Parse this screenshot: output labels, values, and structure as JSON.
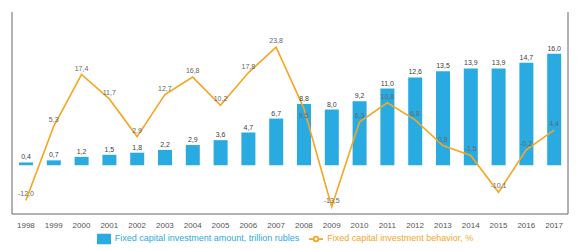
{
  "chart_data": {
    "type": "bar",
    "categories": [
      "1998",
      "1999",
      "2000",
      "2001",
      "2002",
      "2003",
      "2004",
      "2005",
      "2006",
      "2007",
      "2008",
      "2009",
      "2010",
      "2011",
      "2012",
      "2013",
      "2014",
      "2015",
      "2016",
      "2017"
    ],
    "series": [
      {
        "name": "Fixed capital investment amount, trillion rubles",
        "type": "bar",
        "color": "#29abe2",
        "values": [
          0.4,
          0.7,
          1.2,
          1.5,
          1.8,
          2.2,
          2.9,
          3.6,
          4.7,
          6.7,
          8.8,
          8.0,
          9.2,
          11.0,
          12.6,
          13.5,
          13.9,
          13.9,
          14.7,
          16.0
        ],
        "value_labels": [
          "0,4",
          "0,7",
          "1,2",
          "1,5",
          "1,8",
          "2,2",
          "2,9",
          "3,6",
          "4,7",
          "6,7",
          "8,8",
          "8,0",
          "9,2",
          "11,0",
          "12,6",
          "13,5",
          "13,9",
          "13,9",
          "14,7",
          "16,0"
        ]
      },
      {
        "name": "Fixed capital investment behavior, %",
        "type": "line",
        "axis": "y2",
        "color": "#f5a623",
        "values": [
          -12.0,
          5.3,
          17.4,
          11.7,
          2.9,
          12.7,
          16.8,
          10.2,
          17.8,
          23.8,
          9.5,
          -13.5,
          6.3,
          10.8,
          6.8,
          0.8,
          -1.5,
          -10.1,
          -0.2,
          4.4
        ],
        "value_labels": [
          "-12,0",
          "5,3",
          "17,4",
          "11,7",
          "2,9",
          "12,7",
          "16,8",
          "10,2",
          "17,8",
          "23,8",
          "9,5",
          "-13,5",
          "6,3",
          "10,8",
          "6,8",
          "0,8",
          "-1,5",
          "-10,1",
          "-0,2",
          "4,4"
        ]
      }
    ],
    "ylim": [
      -7.0,
      22.0
    ],
    "y2lim": [
      -15.181818181818182,
      32.0
    ],
    "data_labels": true,
    "tick_labels": "x"
  }
}
